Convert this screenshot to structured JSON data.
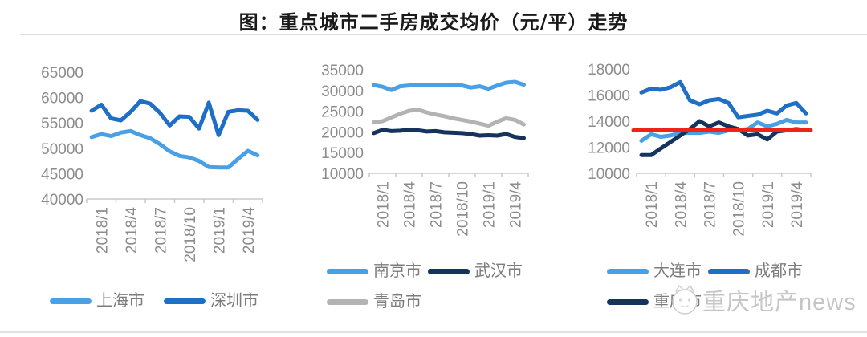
{
  "page": {
    "title": "图：重点城市二手房成交均价（元/平）走势"
  },
  "watermark": {
    "text": "重庆地产news",
    "logo": "mascot-face-logo"
  },
  "colors": {
    "light_blue": "#4aa0e4",
    "medium_blue": "#1f6fc6",
    "navy": "#16335e",
    "gray": "#b3b3b3",
    "red": "#ee2418",
    "axis_text": "#8c8c8c",
    "legend_text": "#7c7c7c",
    "axis_line": "#c9c9c9",
    "divider": "#e0e0e0"
  },
  "chart_data": [
    {
      "type": "line",
      "title": "",
      "xlabel": "",
      "ylabel": "元/平",
      "categories": [
        "2018/1",
        "2018/2",
        "2018/3",
        "2018/4",
        "2018/5",
        "2018/6",
        "2018/7",
        "2018/8",
        "2018/9",
        "2018/10",
        "2018/11",
        "2018/12",
        "2019/1",
        "2019/2",
        "2019/3",
        "2019/4",
        "2019/5",
        "2019/6"
      ],
      "x_tick_labels": [
        "2018/1",
        "2018/4",
        "2018/7",
        "2018/10",
        "2019/1",
        "2019/4"
      ],
      "x_tick_indices": [
        0,
        3,
        6,
        9,
        12,
        15
      ],
      "ylim": [
        40000,
        65000
      ],
      "y_ticks": [
        65000,
        60000,
        55000,
        50000,
        45000,
        40000
      ],
      "grid": false,
      "legend_position": "bottom",
      "series": [
        {
          "name": "上海市",
          "color_key": "light_blue",
          "values": [
            52200,
            52800,
            52400,
            53100,
            53400,
            52600,
            52000,
            50800,
            49400,
            48500,
            48200,
            47500,
            46300,
            46200,
            46200,
            47900,
            49500,
            48600
          ]
        },
        {
          "name": "深圳市",
          "color_key": "medium_blue",
          "values": [
            57400,
            58600,
            55900,
            55500,
            57200,
            59300,
            58800,
            57000,
            54500,
            56300,
            56200,
            53900,
            59000,
            52600,
            57200,
            57500,
            57400,
            55600
          ]
        }
      ]
    },
    {
      "type": "line",
      "title": "",
      "xlabel": "",
      "ylabel": "元/平",
      "categories": [
        "2018/1",
        "2018/2",
        "2018/3",
        "2018/4",
        "2018/5",
        "2018/6",
        "2018/7",
        "2018/8",
        "2018/9",
        "2018/10",
        "2018/11",
        "2018/12",
        "2019/1",
        "2019/2",
        "2019/3",
        "2019/4",
        "2019/5",
        "2019/6"
      ],
      "x_tick_labels": [
        "2018/1",
        "2018/4",
        "2018/7",
        "2018/10",
        "2019/1",
        "2019/4"
      ],
      "x_tick_indices": [
        0,
        3,
        6,
        9,
        12,
        15
      ],
      "ylim": [
        10000,
        35000
      ],
      "y_ticks": [
        35000,
        30000,
        25000,
        20000,
        15000,
        10000
      ],
      "grid": false,
      "legend_position": "bottom",
      "series": [
        {
          "name": "南京市",
          "color_key": "light_blue",
          "values": [
            31300,
            30900,
            30100,
            31000,
            31200,
            31300,
            31400,
            31400,
            31300,
            31300,
            31200,
            30700,
            31000,
            30400,
            31200,
            31900,
            32100,
            31400
          ]
        },
        {
          "name": "武汉市",
          "color_key": "navy",
          "values": [
            19700,
            20500,
            20200,
            20300,
            20500,
            20400,
            20100,
            20200,
            19900,
            19800,
            19700,
            19500,
            19100,
            19200,
            19100,
            19500,
            18800,
            18500
          ]
        },
        {
          "name": "青岛市",
          "color_key": "gray",
          "values": [
            22300,
            22600,
            23500,
            24400,
            25100,
            25400,
            24700,
            24200,
            23800,
            23300,
            22900,
            22500,
            22000,
            21500,
            22500,
            23300,
            22900,
            21800
          ]
        }
      ]
    },
    {
      "type": "line",
      "title": "",
      "xlabel": "",
      "ylabel": "元/平",
      "categories": [
        "2018/1",
        "2018/2",
        "2018/3",
        "2018/4",
        "2018/5",
        "2018/6",
        "2018/7",
        "2018/8",
        "2018/9",
        "2018/10",
        "2018/11",
        "2018/12",
        "2019/1",
        "2019/2",
        "2019/3",
        "2019/4",
        "2019/5",
        "2019/6"
      ],
      "x_tick_labels": [
        "2018/1",
        "2018/4",
        "2018/7",
        "2018/10",
        "2019/1",
        "2019/4"
      ],
      "x_tick_indices": [
        0,
        3,
        6,
        9,
        12,
        15
      ],
      "ylim": [
        10000,
        18000
      ],
      "y_ticks": [
        18000,
        16000,
        14000,
        12000,
        10000
      ],
      "grid": false,
      "legend_position": "bottom",
      "reference_line": {
        "value": 13300,
        "color_key": "red"
      },
      "series": [
        {
          "name": "大连市",
          "color_key": "light_blue",
          "values": [
            12500,
            13000,
            12800,
            12900,
            13100,
            13100,
            13100,
            13200,
            13100,
            13300,
            13300,
            13400,
            13900,
            13600,
            13800,
            14100,
            13900,
            13900
          ]
        },
        {
          "name": "成都市",
          "color_key": "medium_blue",
          "values": [
            16200,
            16500,
            16400,
            16600,
            17000,
            15600,
            15300,
            15600,
            15700,
            15400,
            14300,
            14400,
            14500,
            14800,
            14600,
            15200,
            15400,
            14600
          ]
        },
        {
          "name": "重庆市",
          "color_key": "navy",
          "values": [
            11400,
            11400,
            11900,
            12400,
            12900,
            13400,
            14000,
            13600,
            13900,
            13600,
            13400,
            12900,
            13000,
            12600,
            13200,
            13300,
            13400,
            13300
          ]
        }
      ]
    }
  ]
}
